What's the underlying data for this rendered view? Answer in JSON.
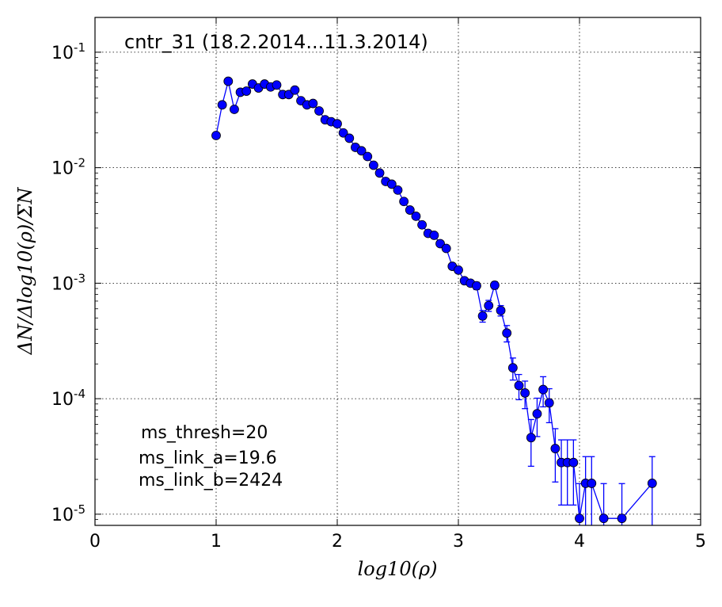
{
  "chart_data": {
    "type": "scatter",
    "title": "cntr_31 (18.2.2014...11.3.2014)",
    "xlabel": "log10(ρ)",
    "ylabel": "ΔN/Δlog10(ρ)/ΣN",
    "xlim": [
      0,
      5
    ],
    "ylim": [
      8e-06,
      0.2
    ],
    "yscale": "log",
    "grid": true,
    "xticks": [
      "0",
      "1",
      "2",
      "3",
      "4",
      "5"
    ],
    "yticks": [
      {
        "base": "10",
        "exp": "-1"
      },
      {
        "base": "10",
        "exp": "-2"
      },
      {
        "base": "10",
        "exp": "-3"
      },
      {
        "base": "10",
        "exp": "-4"
      },
      {
        "base": "10",
        "exp": "-5"
      }
    ],
    "series": [
      {
        "color": "#0000ff",
        "x": [
          1.0,
          1.05,
          1.1,
          1.15,
          1.2,
          1.25,
          1.3,
          1.35,
          1.4,
          1.45,
          1.5,
          1.55,
          1.6,
          1.65,
          1.7,
          1.75,
          1.8,
          1.85,
          1.9,
          1.95,
          2.0,
          2.05,
          2.1,
          2.15,
          2.2,
          2.25,
          2.3,
          2.35,
          2.4,
          2.45,
          2.5,
          2.55,
          2.6,
          2.65,
          2.7,
          2.75,
          2.8,
          2.85,
          2.9,
          2.95,
          3.0,
          3.05,
          3.1,
          3.15,
          3.2,
          3.25,
          3.3,
          3.35,
          3.4,
          3.45,
          3.5,
          3.55,
          3.6,
          3.65,
          3.7,
          3.75,
          3.8,
          3.85,
          3.9,
          3.95,
          4.0,
          4.05,
          4.1,
          4.2,
          4.35,
          4.6
        ],
        "y": [
          0.019,
          0.035,
          0.056,
          0.032,
          0.045,
          0.046,
          0.053,
          0.049,
          0.053,
          0.05,
          0.052,
          0.043,
          0.043,
          0.047,
          0.038,
          0.035,
          0.036,
          0.031,
          0.026,
          0.025,
          0.024,
          0.02,
          0.018,
          0.015,
          0.014,
          0.0125,
          0.0105,
          0.009,
          0.0076,
          0.0072,
          0.0064,
          0.0051,
          0.0043,
          0.0038,
          0.0032,
          0.0027,
          0.0026,
          0.0022,
          0.002,
          0.0014,
          0.0013,
          0.00105,
          0.001,
          0.00095,
          0.00052,
          0.00064,
          0.00096,
          0.00058,
          0.00037,
          0.000185,
          0.00013,
          0.000112,
          4.6e-05,
          7.4e-05,
          0.00012,
          9.2e-05,
          3.7e-05,
          2.8e-05,
          2.8e-05,
          2.8e-05,
          9.2e-06,
          1.85e-05,
          1.85e-05,
          9.2e-06,
          9.2e-06,
          1.85e-05
        ],
        "err": [
          0,
          0,
          0,
          0,
          0,
          0,
          0,
          0,
          0,
          0,
          0,
          0,
          0,
          0,
          0,
          0,
          0,
          0,
          0,
          0,
          0,
          0,
          0,
          0,
          0,
          0,
          0,
          0,
          0,
          0,
          0,
          0,
          0,
          0,
          0,
          0,
          0,
          0,
          0,
          0,
          0,
          0,
          6e-05,
          7e-05,
          6e-05,
          7e-05,
          7e-05,
          6e-05,
          6e-05,
          4e-05,
          3.2e-05,
          3e-05,
          2e-05,
          2.7e-05,
          3.5e-05,
          3e-05,
          1.8e-05,
          1.6e-05,
          1.6e-05,
          1.6e-05,
          9.2e-06,
          1.3e-05,
          1.3e-05,
          9.2e-06,
          9.2e-06,
          1.3e-05
        ]
      }
    ],
    "annotations": [
      "ms_thresh=20",
      "ms_link_a=19.6",
      "ms_link_b=2424"
    ]
  }
}
